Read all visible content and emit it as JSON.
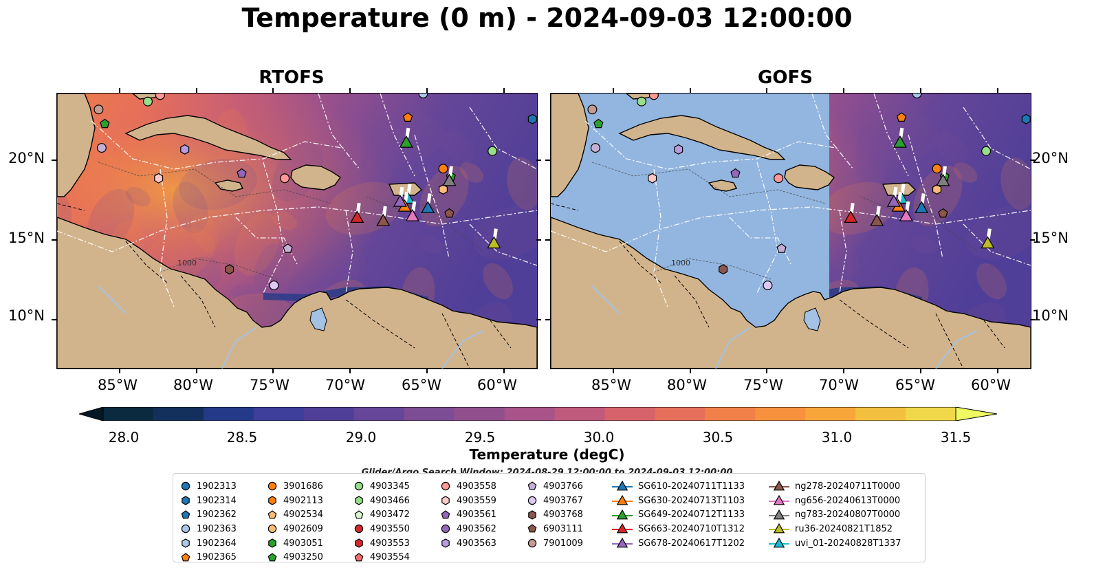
{
  "figure": {
    "title": "Temperature (0 m) - 2024-09-03 12:00:00"
  },
  "panels": [
    {
      "title": "RTOFS",
      "masked_region": "none"
    },
    {
      "title": "GOFS",
      "masked_region": "west of 71°W"
    }
  ],
  "axes": {
    "lat_labels": [
      "20°N",
      "15°N",
      "10°N"
    ],
    "lon_labels": [
      "85°W",
      "80°W",
      "75°W",
      "70°W",
      "65°W",
      "60°W"
    ],
    "contour_labels": [
      "1000"
    ]
  },
  "colors": {
    "land": "#d2b48c",
    "masked_ocean": "#93b6e0",
    "rivers_lakes": "#a3c2e4",
    "track_lines": "#ffffff"
  },
  "colorbar": {
    "label": "Temperature (degC)",
    "ticks": [
      "28.0",
      "28.5",
      "29.0",
      "29.5",
      "30.0",
      "30.5",
      "31.0",
      "31.5"
    ],
    "min": 28.0,
    "max": 31.5,
    "extend": "both",
    "colors": [
      "#0b2a40",
      "#13305c",
      "#243a88",
      "#3d3f9a",
      "#503f98",
      "#654698",
      "#7c4c94",
      "#924f8e",
      "#a85389",
      "#c05a7c",
      "#d6636c",
      "#e56f5a",
      "#f08048",
      "#f7913e",
      "#f8a63a",
      "#f3c03f",
      "#f1d84a"
    ],
    "under_color": "#061826",
    "over_color": "#eef963"
  },
  "legend": {
    "title": "Glider/Argo Search Window: 2024-08-29 12:00:00 to 2024-09-03 12:00:00",
    "columns": [
      [
        {
          "label": "1902313",
          "shape": "circle",
          "color": "#1f77b4"
        },
        {
          "label": "1902314",
          "shape": "hexagon",
          "color": "#1f77b4"
        },
        {
          "label": "1902362",
          "shape": "pentagon",
          "color": "#1f77b4"
        },
        {
          "label": "1902363",
          "shape": "circle",
          "color": "#aec7e8"
        },
        {
          "label": "1902364",
          "shape": "hexagon",
          "color": "#aec7e8"
        },
        {
          "label": "1902365",
          "shape": "pentagon",
          "color": "#ff7f0e"
        }
      ],
      [
        {
          "label": "3901686",
          "shape": "circle",
          "color": "#ff7f0e"
        },
        {
          "label": "4902113",
          "shape": "hexagon",
          "color": "#ff7f0e"
        },
        {
          "label": "4902534",
          "shape": "pentagon",
          "color": "#ffbb78"
        },
        {
          "label": "4902609",
          "shape": "circle",
          "color": "#ffbb78"
        },
        {
          "label": "4903051",
          "shape": "hexagon",
          "color": "#2ca02c"
        },
        {
          "label": "4903250",
          "shape": "pentagon",
          "color": "#2ca02c"
        }
      ],
      [
        {
          "label": "4903345",
          "shape": "circle",
          "color": "#98df8a"
        },
        {
          "label": "4903466",
          "shape": "hexagon",
          "color": "#98df8a"
        },
        {
          "label": "4903472",
          "shape": "pentagon",
          "color": "#d9f7d0"
        },
        {
          "label": "4903550",
          "shape": "circle",
          "color": "#d62728"
        },
        {
          "label": "4903553",
          "shape": "hexagon",
          "color": "#d62728"
        },
        {
          "label": "4903554",
          "shape": "pentagon",
          "color": "#f26d6d"
        }
      ],
      [
        {
          "label": "4903558",
          "shape": "circle",
          "color": "#ff9896"
        },
        {
          "label": "4903559",
          "shape": "hexagon",
          "color": "#ffc9c8"
        },
        {
          "label": "4903561",
          "shape": "pentagon",
          "color": "#9467bd"
        },
        {
          "label": "4903562",
          "shape": "circle",
          "color": "#9467bd"
        },
        {
          "label": "4903563",
          "shape": "hexagon",
          "color": "#b89be0"
        }
      ],
      [
        {
          "label": "4903766",
          "shape": "pentagon",
          "color": "#c5b0d5"
        },
        {
          "label": "4903767",
          "shape": "circle",
          "color": "#dfc9f5"
        },
        {
          "label": "4903768",
          "shape": "hexagon",
          "color": "#8c564b"
        },
        {
          "label": "6903111",
          "shape": "pentagon",
          "color": "#8c564b"
        },
        {
          "label": "7901009",
          "shape": "circle",
          "color": "#c49c94"
        }
      ],
      [
        {
          "label": "SG610-20240711T1133",
          "shape": "triangle-line",
          "color": "#1f77b4"
        },
        {
          "label": "SG630-20240713T1103",
          "shape": "triangle-line",
          "color": "#ff7f0e"
        },
        {
          "label": "SG649-20240712T1133",
          "shape": "triangle-line",
          "color": "#2ca02c"
        },
        {
          "label": "SG663-20240710T1312",
          "shape": "triangle-line",
          "color": "#d62728"
        },
        {
          "label": "SG678-20240617T1202",
          "shape": "triangle-line",
          "color": "#9467bd"
        }
      ],
      [
        {
          "label": "ng278-20240711T0000",
          "shape": "triangle-line",
          "color": "#8c564b"
        },
        {
          "label": "ng656-20240613T0000",
          "shape": "triangle-line",
          "color": "#e377c2"
        },
        {
          "label": "ng783-20240807T0000",
          "shape": "triangle-line",
          "color": "#7f7f7f"
        },
        {
          "label": "ru36-20240821T1852",
          "shape": "triangle-line",
          "color": "#bcbd22"
        },
        {
          "label": "uvi_01-20240828T1337",
          "shape": "triangle-line",
          "color": "#17becf"
        }
      ]
    ]
  }
}
